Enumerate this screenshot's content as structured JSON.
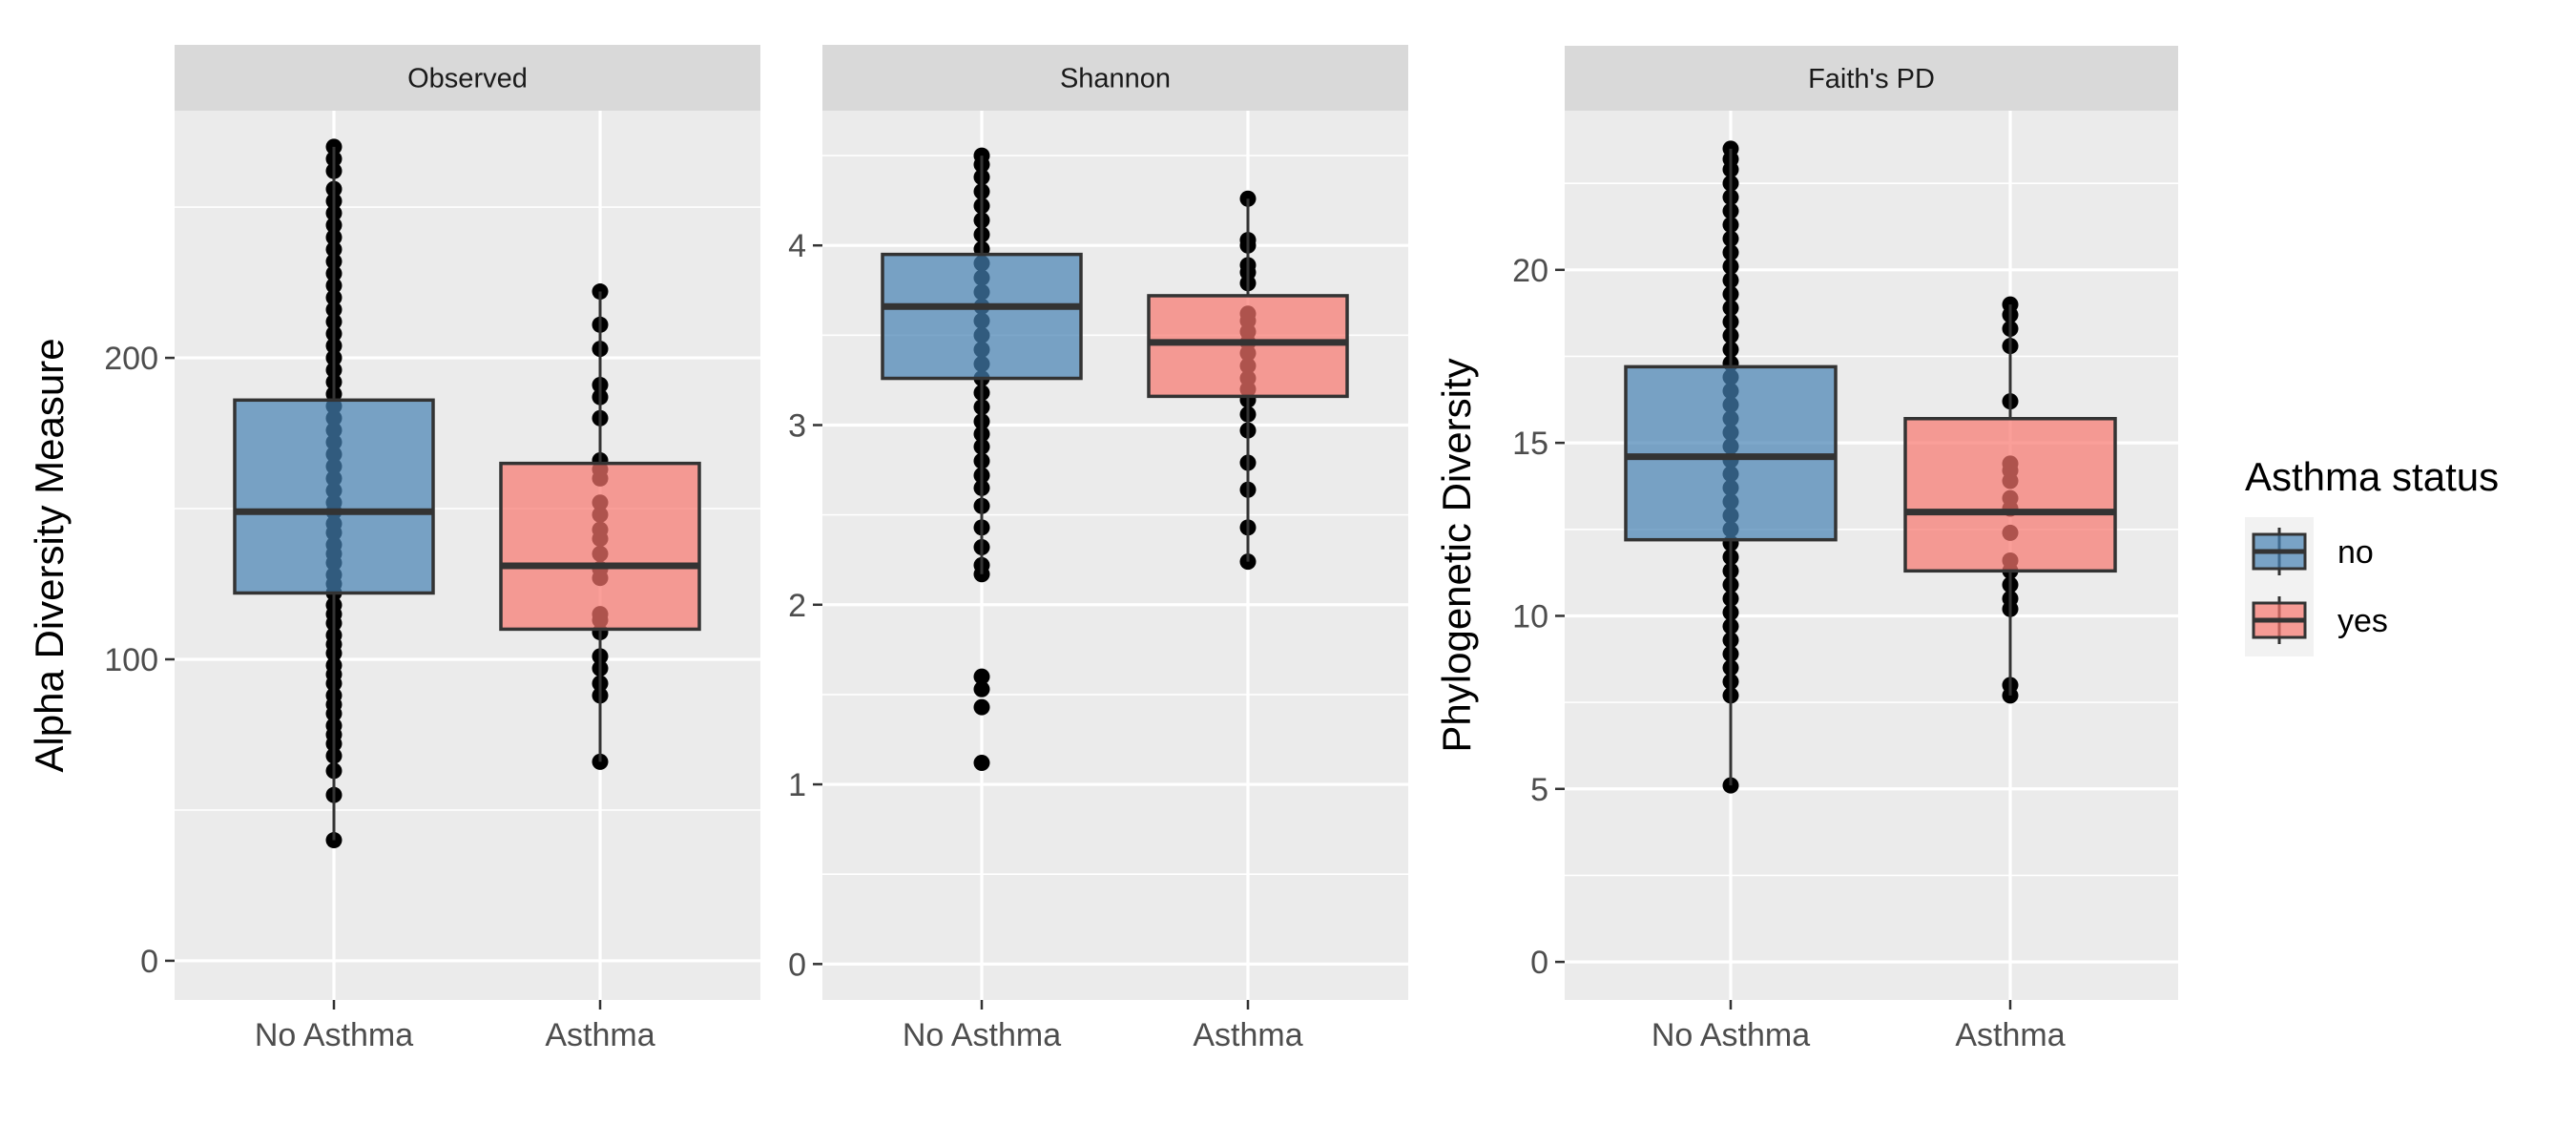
{
  "chart_data": [
    {
      "type": "box",
      "panel_title": "Observed",
      "ylabel": "Alpha Diversity Measure",
      "ylim": [
        -13,
        282
      ],
      "yticks": [
        0,
        100,
        200
      ],
      "minor_yticks": [
        50,
        150,
        250
      ],
      "categories": [
        "No Asthma",
        "Asthma"
      ],
      "boxes": [
        {
          "category": "No Asthma",
          "group": "no",
          "q1": 122,
          "median": 149,
          "q3": 186,
          "whisker_low": 40,
          "whisker_high": 270,
          "points": [
            40,
            55,
            63,
            68,
            72,
            75,
            78,
            82,
            85,
            88,
            92,
            95,
            98,
            102,
            105,
            108,
            112,
            115,
            118,
            122,
            125,
            128,
            132,
            135,
            138,
            142,
            145,
            149,
            152,
            156,
            160,
            164,
            168,
            172,
            176,
            180,
            184,
            188,
            192,
            196,
            200,
            204,
            208,
            212,
            216,
            220,
            224,
            228,
            232,
            236,
            240,
            244,
            248,
            252,
            256,
            262,
            266,
            270
          ]
        },
        {
          "category": "Asthma",
          "group": "yes",
          "q1": 110,
          "median": 131,
          "q3": 165,
          "whisker_low": 66,
          "whisker_high": 222,
          "points": [
            66,
            88,
            92,
            97,
            101,
            109,
            113,
            115,
            127,
            130,
            135,
            140,
            143,
            148,
            152,
            160,
            163,
            166,
            180,
            187,
            191,
            203,
            211,
            222
          ]
        }
      ]
    },
    {
      "type": "box",
      "panel_title": "Shannon",
      "ylabel": "",
      "ylim": [
        -0.2,
        4.75
      ],
      "yticks": [
        0,
        1,
        2,
        3,
        4
      ],
      "minor_yticks": [
        0.5,
        1.5,
        2.5,
        3.5,
        4.5
      ],
      "categories": [
        "No Asthma",
        "Asthma"
      ],
      "boxes": [
        {
          "category": "No Asthma",
          "group": "no",
          "q1": 3.26,
          "median": 3.66,
          "q3": 3.95,
          "whisker_low": 2.17,
          "whisker_high": 4.5,
          "points": [
            1.12,
            1.43,
            1.53,
            1.6,
            2.17,
            2.22,
            2.32,
            2.43,
            2.55,
            2.65,
            2.72,
            2.8,
            2.88,
            2.95,
            3.02,
            3.1,
            3.18,
            3.26,
            3.34,
            3.42,
            3.5,
            3.58,
            3.66,
            3.74,
            3.82,
            3.9,
            3.98,
            4.06,
            4.14,
            4.22,
            4.3,
            4.38,
            4.45,
            4.5
          ]
        },
        {
          "category": "Asthma",
          "group": "yes",
          "q1": 3.16,
          "median": 3.46,
          "q3": 3.72,
          "whisker_low": 2.24,
          "whisker_high": 4.26,
          "points": [
            2.24,
            2.43,
            2.64,
            2.79,
            2.97,
            3.06,
            3.14,
            3.2,
            3.26,
            3.33,
            3.4,
            3.46,
            3.52,
            3.58,
            3.62,
            3.79,
            3.85,
            3.89,
            4.0,
            4.03,
            4.26
          ]
        }
      ]
    },
    {
      "type": "box",
      "panel_title": "Faith's PD",
      "ylabel": "Phylogenetic Diversity",
      "ylim": [
        -1.1,
        24.6
      ],
      "yticks": [
        0,
        5,
        10,
        15,
        20
      ],
      "minor_yticks": [
        2.5,
        7.5,
        12.5,
        17.5,
        22.5
      ],
      "categories": [
        "No Asthma",
        "Asthma"
      ],
      "boxes": [
        {
          "category": "No Asthma",
          "group": "no",
          "q1": 12.2,
          "median": 14.6,
          "q3": 17.2,
          "whisker_low": 5.1,
          "whisker_high": 23.5,
          "points": [
            5.1,
            7.7,
            8.1,
            8.5,
            8.9,
            9.3,
            9.7,
            10.1,
            10.5,
            10.9,
            11.3,
            11.7,
            12.1,
            12.5,
            12.9,
            13.3,
            13.7,
            14.1,
            14.5,
            14.9,
            15.3,
            15.7,
            16.1,
            16.5,
            16.9,
            17.3,
            17.7,
            18.1,
            18.5,
            18.9,
            19.3,
            19.7,
            20.1,
            20.5,
            20.9,
            21.3,
            21.7,
            22.1,
            22.5,
            22.9,
            23.2,
            23.5
          ]
        },
        {
          "category": "Asthma",
          "group": "yes",
          "q1": 11.3,
          "median": 13.0,
          "q3": 15.7,
          "whisker_low": 7.7,
          "whisker_high": 19.0,
          "points": [
            7.7,
            8.0,
            10.2,
            10.5,
            10.9,
            11.3,
            11.6,
            12.4,
            13.1,
            13.4,
            13.9,
            14.2,
            14.4,
            16.2,
            17.8,
            18.3,
            18.7,
            19.0
          ]
        }
      ]
    }
  ],
  "legend": {
    "title": "Asthma status",
    "position": "right",
    "items": [
      {
        "label": "no",
        "color": "#4682b4"
      },
      {
        "label": "yes",
        "color": "#f8766d"
      }
    ]
  },
  "colors": {
    "panel_bg": "#ebebeb",
    "strip_bg": "#d9d9d9",
    "grid": "#ffffff",
    "box_outline": "#333333",
    "point": "#000000",
    "no": "#4682b4",
    "yes": "#f8766d"
  }
}
